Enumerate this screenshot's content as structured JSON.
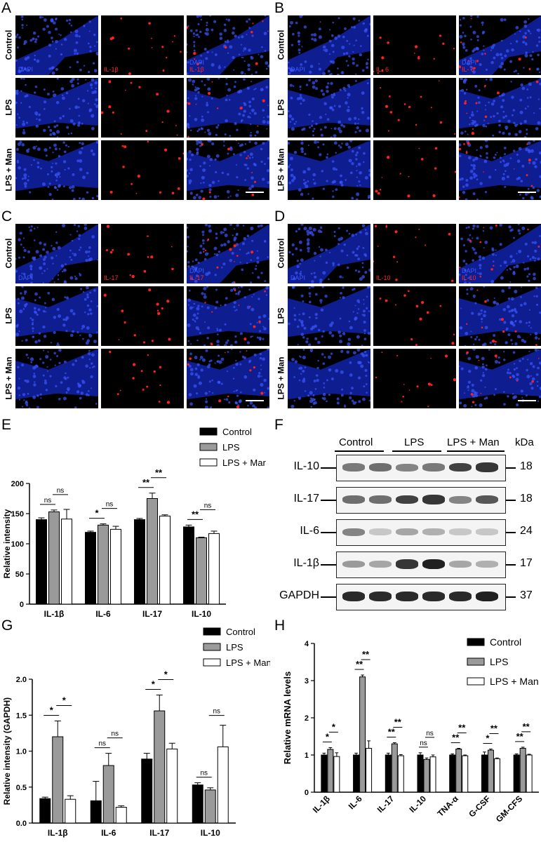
{
  "panels": {
    "A": {
      "letter": "A",
      "rows": [
        "Control",
        "LPS",
        "LPS + Man"
      ],
      "dapi": "DAPI",
      "marker": "IL-1β"
    },
    "B": {
      "letter": "B",
      "rows": [
        "Control",
        "LPS",
        "LPS + Man"
      ],
      "dapi": "DAPI",
      "marker": "IL- 6"
    },
    "C": {
      "letter": "C",
      "rows": [
        "Control",
        "LPS",
        "LPS + Man"
      ],
      "dapi": "DAPI",
      "marker": "IL-17"
    },
    "D": {
      "letter": "D",
      "rows": [
        "Control",
        "LPS",
        "LPS + Man"
      ],
      "dapi": "DAPI",
      "marker": "IL-10"
    },
    "E": {
      "letter": "E"
    },
    "F": {
      "letter": "F",
      "groups": [
        "Control",
        "LPS",
        "LPS + Man"
      ],
      "kda_header": "kDa",
      "blots": [
        {
          "name": "IL-10",
          "kda": "18"
        },
        {
          "name": "IL-17",
          "kda": "18"
        },
        {
          "name": "IL-6",
          "kda": "24"
        },
        {
          "name": "IL-1β",
          "kda": "17"
        },
        {
          "name": "GAPDH",
          "kda": "37"
        }
      ]
    },
    "G": {
      "letter": "G"
    },
    "H": {
      "letter": "H"
    }
  },
  "colors": {
    "control": "#000000",
    "lps": "#9a9a9a",
    "lpsman": "#ffffff",
    "dapi": "#1a2fd8",
    "marker": "#ff1a1a"
  },
  "chart_data": [
    {
      "id": "E",
      "type": "bar",
      "categories": [
        "IL-1β",
        "IL-6",
        "IL-17",
        "IL-10"
      ],
      "series": [
        {
          "name": "Control",
          "values": [
            140,
            119,
            140,
            128
          ],
          "errors": [
            3,
            2,
            2,
            3
          ]
        },
        {
          "name": "LPS",
          "values": [
            153,
            131,
            175,
            110
          ],
          "errors": [
            3,
            2,
            9,
            1
          ]
        },
        {
          "name": "LPS + Mar",
          "values": [
            141,
            124,
            146,
            117
          ],
          "errors": [
            16,
            5,
            2,
            4
          ]
        }
      ],
      "ylabel": "Relative intensity",
      "ylim": [
        0,
        200
      ],
      "yticks": [
        0,
        50,
        100,
        150,
        200
      ],
      "sig": [
        [
          "ns",
          "ns"
        ],
        [
          "*",
          "ns"
        ],
        [
          "**",
          "**"
        ],
        [
          "**",
          "ns"
        ]
      ],
      "legend": "top-right"
    },
    {
      "id": "G",
      "type": "bar",
      "categories": [
        "IL-1β",
        "IL-6",
        "IL-17",
        "IL-10"
      ],
      "series": [
        {
          "name": "Control",
          "values": [
            0.34,
            0.31,
            0.89,
            0.53
          ],
          "errors": [
            0.02,
            0.27,
            0.08,
            0.03
          ]
        },
        {
          "name": "LPS",
          "values": [
            1.2,
            0.8,
            1.56,
            0.46
          ],
          "errors": [
            0.22,
            0.17,
            0.22,
            0.03
          ]
        },
        {
          "name": "LPS + Man",
          "values": [
            0.33,
            0.22,
            1.03,
            1.06
          ],
          "errors": [
            0.05,
            0.02,
            0.08,
            0.3
          ]
        }
      ],
      "ylabel": "Relative intensity (GAPDH)",
      "ylim": [
        0,
        2.0
      ],
      "yticks": [
        "0.0",
        "0.5",
        "1.0",
        "1.5",
        "2.0"
      ],
      "sig": [
        [
          "*",
          "*"
        ],
        [
          "ns",
          "ns"
        ],
        [
          "*",
          "*"
        ],
        [
          "ns",
          "ns"
        ]
      ],
      "legend": "top-right"
    },
    {
      "id": "H",
      "type": "bar",
      "categories": [
        "IL-1β",
        "IL-6",
        "IL-17",
        "IL-10",
        "TNA-α",
        "G-CSF",
        "GM-CFS"
      ],
      "series": [
        {
          "name": "Control",
          "values": [
            1.0,
            1.0,
            1.0,
            1.0,
            1.0,
            1.0,
            1.0
          ],
          "errors": [
            0.05,
            0.05,
            0.05,
            0.06,
            0.03,
            0.08,
            0.03
          ]
        },
        {
          "name": "LPS",
          "values": [
            1.15,
            3.1,
            1.3,
            0.88,
            1.16,
            1.13,
            1.18
          ],
          "errors": [
            0.05,
            0.05,
            0.03,
            0.04,
            0.02,
            0.03,
            0.03
          ]
        },
        {
          "name": "LPS + Man",
          "values": [
            0.96,
            1.18,
            0.98,
            0.95,
            0.98,
            0.9,
            1.0
          ],
          "errors": [
            0.1,
            0.2,
            0.03,
            0.05,
            0.02,
            0.02,
            0.02
          ]
        }
      ],
      "ylabel": "Relative mRNA levels",
      "ylim": [
        0,
        4
      ],
      "yticks": [
        "0",
        "1",
        "2",
        "3",
        "4"
      ],
      "sig": [
        [
          "*",
          "*"
        ],
        [
          "**",
          "**"
        ],
        [
          "**",
          "**"
        ],
        [
          "ns",
          "ns"
        ],
        [
          "**",
          "**"
        ],
        [
          "*",
          "**"
        ],
        [
          "**",
          "**"
        ]
      ],
      "legend": "top-right"
    }
  ]
}
